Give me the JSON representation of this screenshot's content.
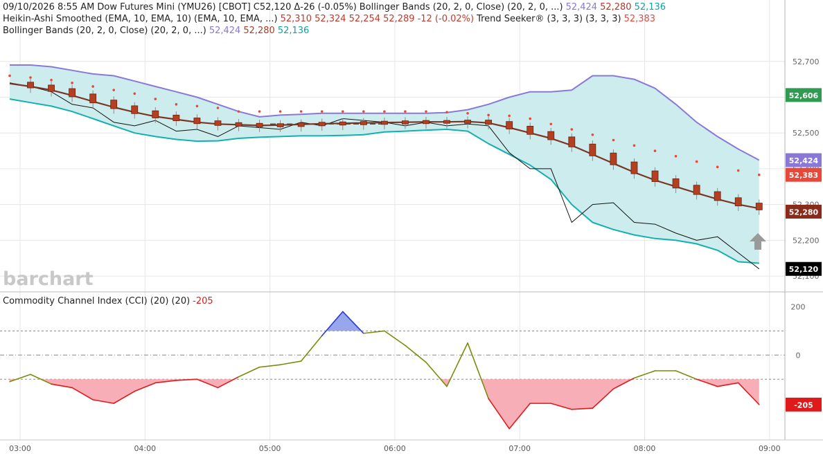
{
  "header": {
    "line1": {
      "date": "09/10/2026",
      "time": "8:55 AM",
      "instrument": "Dow Futures Mini (YMU26) [CBOT]",
      "last": "C52,120",
      "change": "Δ-26 (-0.05%)",
      "bb_label": "Bollinger Bands (20, 2, 0, Close)",
      "bb_params": "(20, 2, 0, ...)",
      "bb_upper": "52,424",
      "bb_mid": "52,280",
      "bb_lower": "52,136"
    },
    "line2": {
      "ha_label": "Heikin-Ashi Smoothed (EMA, 10, EMA, 10)",
      "ha_params": "(EMA, 10, EMA, ...)",
      "ha_open": "52,310",
      "ha_high": "52,324",
      "ha_low": "52,254",
      "ha_close": "52,289",
      "ha_change": "-12 (-0.02%)",
      "ts_label": "Trend Seeker® (3, 3, 3)",
      "ts_params": "(3, 3, 3)",
      "ts_value": "52,383"
    },
    "line3": {
      "bb_label": "Bollinger Bands (20, 2, 0, Close)",
      "bb_params": "(20, 2, 0, ...)",
      "bb_upper": "52,424",
      "bb_mid": "52,280",
      "bb_lower": "52,136"
    }
  },
  "cci_header": {
    "label": "Commodity Channel Index (CCI) (20)",
    "params": "(20)",
    "value": "-205"
  },
  "watermark": "barchart",
  "colors": {
    "bb_upper": "#8a78d6",
    "bb_mid": "#a83c2a",
    "bb_lower": "#12b0b0",
    "band_fill": "#cdeced",
    "candle": "#b5401f",
    "trend_seeker": "#e8483a",
    "ha_smooth": "#7a3524",
    "cci_line": "#7c8a0a",
    "cci_over": "#2a36d8",
    "cci_under": "#e01a1a",
    "cci_over_fill": "#98a6ec",
    "cci_under_fill": "#f8aeb6"
  },
  "price_tags": [
    {
      "label": "52,606",
      "value": 52606,
      "color": "#2f9a50"
    },
    {
      "label": "52,424",
      "value": 52424,
      "color": "#8a78d6"
    },
    {
      "label": "52,383",
      "value": 52383,
      "color": "#e8483a"
    },
    {
      "label": "52,280",
      "value": 52280,
      "color": "#8a2a1a"
    },
    {
      "label": "52,120",
      "value": 52120,
      "color": "#000000"
    }
  ],
  "cci_tag": {
    "label": "-205",
    "value": -205,
    "color": "#e01a1a"
  },
  "chart_data": [
    {
      "type": "line",
      "title": "Dow Futures Mini (YMU26) [CBOT]",
      "x_ticks": [
        "03:00",
        "04:00",
        "05:00",
        "06:00",
        "07:00",
        "08:00",
        "09:00"
      ],
      "x_range": [
        "02:55",
        "09:05"
      ],
      "y_ticks": [
        52100,
        52200,
        52300,
        52400,
        52500,
        52600,
        52700
      ],
      "y_tick_labels": [
        "52,100",
        "52,200",
        "52,300",
        "52,400",
        "52,500",
        "52,600",
        "52,700"
      ],
      "ylim": [
        52075,
        52775
      ],
      "grid": true,
      "dashed_level": 52525,
      "x_times": [
        "02:55",
        "03:05",
        "03:15",
        "03:25",
        "03:35",
        "03:45",
        "03:55",
        "04:05",
        "04:15",
        "04:25",
        "04:35",
        "04:45",
        "04:55",
        "05:05",
        "05:15",
        "05:25",
        "05:35",
        "05:45",
        "05:55",
        "06:05",
        "06:15",
        "06:25",
        "06:35",
        "06:45",
        "06:55",
        "07:05",
        "07:15",
        "07:25",
        "07:35",
        "07:45",
        "07:55",
        "08:05",
        "08:15",
        "08:25",
        "08:35",
        "08:45",
        "08:55"
      ],
      "series": [
        {
          "name": "Bollinger Bands Upper",
          "values": [
            52690,
            52690,
            52685,
            52675,
            52665,
            52660,
            52645,
            52630,
            52615,
            52600,
            52580,
            52560,
            52545,
            52550,
            52552,
            52555,
            52555,
            52555,
            52555,
            52555,
            52555,
            52557,
            52565,
            52580,
            52600,
            52615,
            52615,
            52620,
            52660,
            52660,
            52650,
            52625,
            52580,
            52530,
            52490,
            52455,
            52424
          ]
        },
        {
          "name": "Bollinger Bands Middle",
          "values": [
            52640,
            52630,
            52620,
            52605,
            52590,
            52575,
            52562,
            52545,
            52537,
            52530,
            52525,
            52525,
            52522,
            52524,
            52525,
            52527,
            52528,
            52528,
            52530,
            52530,
            52532,
            52533,
            52534,
            52533,
            52530,
            52515,
            52505,
            52490,
            52470,
            52450,
            52425,
            52403,
            52380,
            52365,
            52335,
            52305,
            52280
          ]
        },
        {
          "name": "Bollinger Bands Lower",
          "values": [
            52595,
            52585,
            52575,
            52560,
            52540,
            52520,
            52500,
            52490,
            52482,
            52477,
            52478,
            52485,
            52488,
            52490,
            52492,
            52492,
            52493,
            52495,
            52503,
            52505,
            52508,
            52510,
            52505,
            52470,
            52440,
            52410,
            52370,
            52300,
            52250,
            52230,
            52215,
            52205,
            52200,
            52190,
            52172,
            52140,
            52136
          ]
        },
        {
          "name": "Last",
          "values": [
            52640,
            52630,
            52615,
            52580,
            52570,
            52530,
            52520,
            52535,
            52505,
            52510,
            52490,
            52520,
            52515,
            52510,
            52530,
            52520,
            52540,
            52535,
            52530,
            52520,
            52530,
            52520,
            52525,
            52520,
            52445,
            52400,
            52400,
            52250,
            52300,
            52305,
            52250,
            52245,
            52220,
            52200,
            52210,
            52165,
            52120
          ]
        },
        {
          "name": "Heikin-Ashi Smoothed",
          "values": [
            52638,
            52630,
            52620,
            52605,
            52588,
            52572,
            52558,
            52546,
            52538,
            52530,
            52525,
            52523,
            52521,
            52522,
            52524,
            52526,
            52527,
            52528,
            52529,
            52530,
            52531,
            52531,
            52532,
            52528,
            52515,
            52500,
            52485,
            52465,
            52440,
            52415,
            52390,
            52368,
            52350,
            52332,
            52315,
            52300,
            52289
          ]
        },
        {
          "name": "Trend Seeker",
          "values": [
            52660,
            52655,
            52648,
            52640,
            52630,
            52620,
            52610,
            52595,
            52580,
            52575,
            52570,
            52560,
            52560,
            52560,
            52560,
            52560,
            52560,
            52560,
            52560,
            52560,
            52560,
            52558,
            52555,
            52550,
            52548,
            52540,
            52525,
            52510,
            52495,
            52480,
            52465,
            52450,
            52435,
            52420,
            52405,
            52395,
            52383
          ]
        }
      ]
    },
    {
      "type": "line",
      "title": "Commodity Channel Index (CCI) (20)",
      "y_ticks": [
        -100,
        0,
        100,
        200
      ],
      "y_tick_labels": [
        "",
        "0",
        "",
        "200"
      ],
      "ylim": [
        -340,
        210
      ],
      "thresholds": [
        100,
        0,
        -100
      ],
      "x_times": [
        "02:55",
        "03:05",
        "03:15",
        "03:25",
        "03:35",
        "03:45",
        "03:55",
        "04:05",
        "04:15",
        "04:25",
        "04:35",
        "04:45",
        "04:55",
        "05:05",
        "05:15",
        "05:25",
        "05:35",
        "05:45",
        "05:55",
        "06:05",
        "06:15",
        "06:25",
        "06:35",
        "06:45",
        "06:55",
        "07:05",
        "07:15",
        "07:25",
        "07:35",
        "07:45",
        "07:55",
        "08:05",
        "08:15",
        "08:25",
        "08:35",
        "08:45",
        "08:55"
      ],
      "series": [
        {
          "name": "CCI",
          "values": [
            -110,
            -80,
            -120,
            -135,
            -185,
            -200,
            -150,
            -115,
            -105,
            -100,
            -135,
            -90,
            -50,
            -40,
            -25,
            80,
            180,
            90,
            100,
            40,
            -30,
            -130,
            50,
            -180,
            -305,
            -200,
            -200,
            -225,
            -220,
            -140,
            -95,
            -65,
            -65,
            -100,
            -130,
            -115,
            -205
          ]
        }
      ]
    }
  ]
}
